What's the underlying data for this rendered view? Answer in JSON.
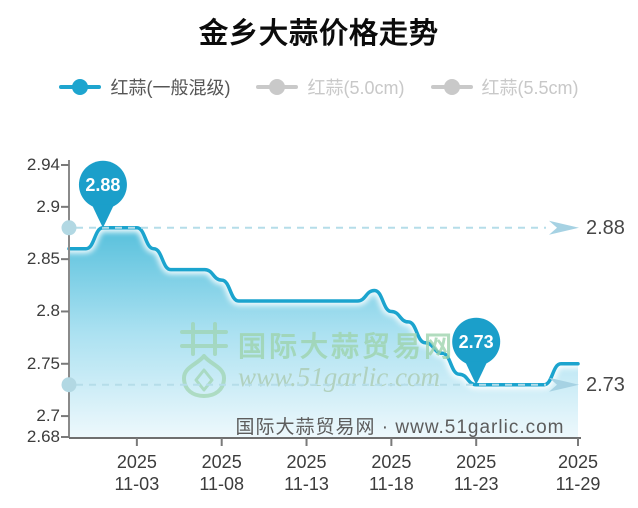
{
  "title": "金乡大蒜价格走势",
  "legend": [
    {
      "label": "红蒜(一般混级)",
      "color": "#1ea5cf",
      "active": true
    },
    {
      "label": "红蒜(5.0cm)",
      "color": "#c9c9c9",
      "active": false
    },
    {
      "label": "红蒜(5.5cm)",
      "color": "#c9c9c9",
      "active": false
    }
  ],
  "watermark": {
    "site_name": "国际大蒜贸易网",
    "site_url": "www.51garlic.com"
  },
  "footer_note": "国际大蒜贸易网 · www.51garlic.com",
  "colors": {
    "accent": "#1ea5cf",
    "line": "#1ba4ce",
    "pin": "#1b9fca",
    "area_top": "#57c0dc",
    "area_mid": "#abe1f1",
    "area_bottom": "#edf8fc",
    "dash": "#b5dde9",
    "arrow": "#a6d2e3",
    "axis": "#7a7a7a",
    "axis_dot": "#b2d8e3",
    "inactive_legend": "#c9c9c9",
    "watermark_green": "#9ed4ae"
  },
  "chart_data": {
    "type": "area",
    "title": "金乡大蒜价格走势",
    "xlabel": "",
    "ylabel": "",
    "ylim": [
      2.68,
      2.94
    ],
    "grid": false,
    "legend_position": "top",
    "y_ticks": [
      "2.94",
      "2.9",
      "2.85",
      "2.8",
      "2.75",
      "2.7",
      "2.68"
    ],
    "x_ticks": [
      {
        "year": "2025",
        "day": "11-03"
      },
      {
        "year": "2025",
        "day": "11-08"
      },
      {
        "year": "2025",
        "day": "11-13"
      },
      {
        "year": "2025",
        "day": "11-18"
      },
      {
        "year": "2025",
        "day": "11-23"
      },
      {
        "year": "2025",
        "day": "11-29"
      }
    ],
    "series": [
      {
        "name": "红蒜(一般混级)",
        "x": [
          "10-30",
          "10-31",
          "11-01",
          "11-02",
          "11-03",
          "11-04",
          "11-05",
          "11-06",
          "11-07",
          "11-08",
          "11-09",
          "11-10",
          "11-11",
          "11-12",
          "11-13",
          "11-14",
          "11-15",
          "11-16",
          "11-17",
          "11-18",
          "11-19",
          "11-20",
          "11-21",
          "11-22",
          "11-23",
          "11-24",
          "11-25",
          "11-26",
          "11-27",
          "11-28",
          "11-29"
        ],
        "values": [
          2.86,
          2.86,
          2.88,
          2.88,
          2.88,
          2.86,
          2.84,
          2.84,
          2.84,
          2.83,
          2.81,
          2.81,
          2.81,
          2.81,
          2.81,
          2.81,
          2.81,
          2.81,
          2.82,
          2.8,
          2.79,
          2.77,
          2.76,
          2.74,
          2.73,
          2.73,
          2.73,
          2.73,
          2.73,
          2.75,
          2.75
        ]
      }
    ],
    "markers": [
      {
        "date": "11-01",
        "value": 2.88,
        "label": "2.88"
      },
      {
        "date": "11-23",
        "value": 2.73,
        "label": "2.73"
      }
    ]
  }
}
